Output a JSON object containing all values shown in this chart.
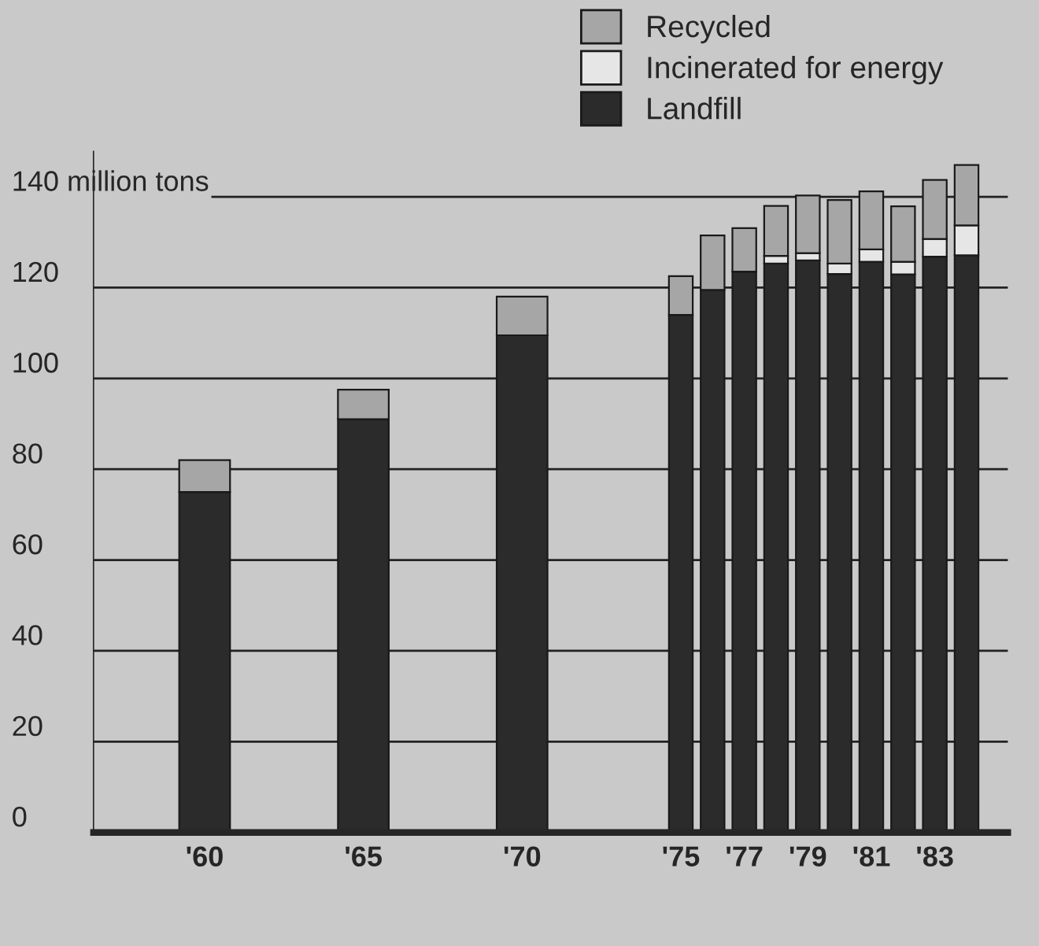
{
  "chart_data": {
    "type": "bar",
    "stacked": true,
    "x": [
      1960,
      1965,
      1970,
      1975,
      1976,
      1977,
      1978,
      1979,
      1980,
      1981,
      1982,
      1983,
      1984
    ],
    "series": [
      {
        "name": "Landfill",
        "color": "#2b2b2b",
        "values": [
          75,
          91,
          109.5,
          114,
          119.5,
          123.5,
          125.3,
          126,
          123,
          125.7,
          122.9,
          126.8,
          127.1
        ]
      },
      {
        "name": "Incinerated for energy",
        "color": "#e6e6e6",
        "values": [
          0,
          0,
          0,
          0,
          0,
          0,
          1.7,
          1.6,
          2.3,
          2.7,
          2.8,
          3.9,
          6.6
        ]
      },
      {
        "name": "Recycled",
        "color": "#a6a6a6",
        "values": [
          7,
          6.5,
          8.5,
          8.5,
          12,
          9.6,
          11,
          12.7,
          14,
          12.8,
          12.2,
          13,
          13.3
        ]
      }
    ],
    "xlim": [
      1956.5,
      1985.3
    ],
    "xticks": [
      {
        "value": 1960,
        "label": "'60"
      },
      {
        "value": 1965,
        "label": "'65"
      },
      {
        "value": 1970,
        "label": "'70"
      },
      {
        "value": 1975,
        "label": "'75"
      },
      {
        "value": 1977,
        "label": "'77"
      },
      {
        "value": 1979,
        "label": "'79"
      },
      {
        "value": 1981,
        "label": "'81"
      },
      {
        "value": 1983,
        "label": "'83"
      }
    ],
    "ylim": [
      0,
      150
    ],
    "yticks": [
      0,
      20,
      40,
      60,
      80,
      100,
      120,
      {
        "value": 140,
        "label": "140 million tons"
      }
    ],
    "grid": "y",
    "legend": "top"
  }
}
